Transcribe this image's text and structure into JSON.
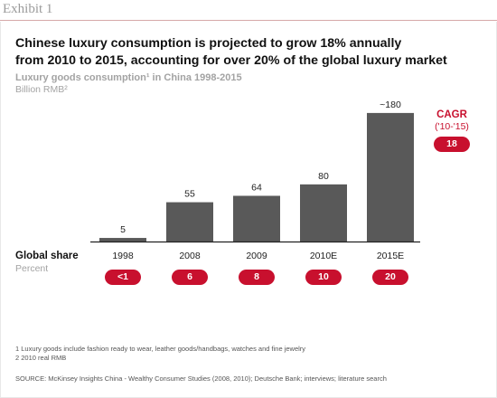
{
  "exhibit": {
    "label": "Exhibit 1"
  },
  "headline": {
    "line1": "Chinese luxury consumption is projected to grow 18% annually",
    "line2": "from 2010 to 2015, accounting for over 20% of the global luxury market"
  },
  "chart_data": {
    "type": "bar",
    "title": "Luxury goods consumption¹ in China 1998-2015",
    "unit": "Billion RMB²",
    "categories": [
      "1998",
      "2008",
      "2009",
      "2010E",
      "2015E"
    ],
    "values": [
      5,
      55,
      64,
      80,
      180
    ],
    "value_labels": [
      "5",
      "55",
      "64",
      "80",
      "~180"
    ],
    "ylim": [
      0,
      190
    ],
    "grid": false,
    "bar_color": "#595959",
    "accent_color": "#c8102e",
    "cagr": {
      "title": "CAGR",
      "period": "('10-'15)",
      "value": "18"
    },
    "global_share": {
      "title": "Global share",
      "unit": "Percent",
      "values": [
        "<1",
        "6",
        "8",
        "10",
        "20"
      ]
    }
  },
  "footnotes": {
    "note1": "1 Luxury goods include fashion ready to wear, leather goods/handbags, watches and fine jewelry",
    "note2": "2 2010 real RMB",
    "source": "SOURCE: McKinsey Insights China - Wealthy Consumer Studies (2008, 2010); Deutsche Bank; interviews; literature search"
  }
}
